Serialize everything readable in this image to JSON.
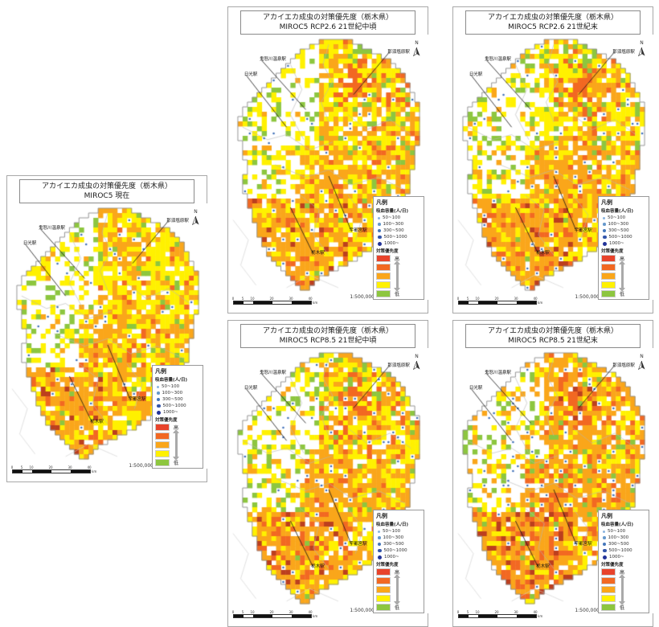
{
  "shared": {
    "title_line1": "アカイエカ成虫の対策優先度（栃木県）",
    "north_label": "N",
    "scale_ratio": "1:500,000",
    "scale_ticks": [
      "0",
      "5",
      "10",
      "20",
      "30",
      "40"
    ],
    "scale_unit": "km",
    "legend": {
      "header": "凡例",
      "capacity_title": "吸血容量(人/日)",
      "capacity_classes": [
        {
          "label": "50~100"
        },
        {
          "label": "100~300"
        },
        {
          "label": "300~500"
        },
        {
          "label": "500~1000"
        },
        {
          "label": "1000~"
        }
      ],
      "dot_colors": [
        "#8AB4E0",
        "#6699CC",
        "#4477BB",
        "#3355AA",
        "#223399"
      ],
      "dot_sizes": [
        3,
        3.5,
        4,
        4.5,
        5
      ],
      "priority_title": "対策優先度",
      "priority_high": "高",
      "priority_low": "低",
      "priority_colors": [
        "#E8432B",
        "#F26822",
        "#FAA61A",
        "#FFF100",
        "#8DC63F"
      ]
    }
  },
  "map": {
    "region_name": "栃木県",
    "colors": {
      "y": "#FFF100",
      "o": "#FAA61A",
      "d": "#F26822",
      "r": "#BC3F1E",
      "g": "#8DC63F",
      "b": "#3E6FB8"
    },
    "outline_color": "#8c8c8c",
    "boundary_color": "#b5b5b5",
    "grid": {
      "cols": 40,
      "rows": 52
    },
    "shape": [
      [
        18,
        24
      ],
      [
        16,
        26
      ],
      [
        14,
        28
      ],
      [
        13,
        30
      ],
      [
        12,
        32
      ],
      [
        11,
        33
      ],
      [
        10,
        34
      ],
      [
        9,
        35
      ],
      [
        8,
        35
      ],
      [
        7,
        36
      ],
      [
        6,
        36
      ],
      [
        5,
        37
      ],
      [
        4,
        37
      ],
      [
        3,
        38
      ],
      [
        2,
        38
      ],
      [
        2,
        38
      ],
      [
        1,
        38
      ],
      [
        1,
        38
      ],
      [
        1,
        38
      ],
      [
        1,
        38
      ],
      [
        1,
        38
      ],
      [
        2,
        38
      ],
      [
        2,
        37
      ],
      [
        2,
        37
      ],
      [
        2,
        37
      ],
      [
        3,
        37
      ],
      [
        3,
        37
      ],
      [
        3,
        36
      ],
      [
        2,
        36
      ],
      [
        2,
        36
      ],
      [
        2,
        36
      ],
      [
        2,
        36
      ],
      [
        3,
        35
      ],
      [
        3,
        35
      ],
      [
        3,
        35
      ],
      [
        4,
        34
      ],
      [
        4,
        34
      ],
      [
        4,
        33
      ],
      [
        5,
        33
      ],
      [
        5,
        32
      ],
      [
        5,
        31
      ],
      [
        6,
        30
      ],
      [
        6,
        29
      ],
      [
        7,
        28
      ],
      [
        7,
        26
      ],
      [
        8,
        25
      ],
      [
        9,
        23
      ],
      [
        10,
        21
      ],
      [
        11,
        19
      ],
      [
        12,
        17
      ],
      [
        13,
        16
      ],
      [
        14,
        15
      ]
    ],
    "stations": [
      {
        "name": "那須塩原駅",
        "lx": 0.8,
        "ly": 0.045,
        "ax": 0.63,
        "ay": 0.22
      },
      {
        "name": "鬼怒川温泉駅",
        "lx": 0.13,
        "ly": 0.075,
        "ax": 0.38,
        "ay": 0.28
      },
      {
        "name": "日光駅",
        "lx": 0.05,
        "ly": 0.135,
        "ax": 0.28,
        "ay": 0.35
      },
      {
        "name": "宇都宮駅",
        "lx": 0.6,
        "ly": 0.755,
        "ax": 0.5,
        "ay": 0.545
      },
      {
        "name": "栃木駅",
        "lx": 0.4,
        "ly": 0.845,
        "ax": 0.3,
        "ay": 0.67
      }
    ]
  },
  "panels": [
    {
      "id": "current",
      "title_line2": "MIROC5 現在",
      "seed": 11,
      "zone_weights": {
        "nw": {
          "n": 62,
          "y": 20,
          "g": 10,
          "o": 4,
          "b": 4
        },
        "ne": {
          "y": 48,
          "o": 22,
          "n": 16,
          "g": 6,
          "d": 4,
          "b": 4
        },
        "w": {
          "n": 55,
          "y": 28,
          "g": 9,
          "o": 5,
          "b": 3
        },
        "c": {
          "y": 38,
          "o": 34,
          "n": 14,
          "d": 6,
          "g": 4,
          "b": 4
        },
        "sw": {
          "o": 44,
          "y": 28,
          "d": 11,
          "n": 8,
          "r": 4,
          "g": 2,
          "b": 3
        },
        "se": {
          "y": 47,
          "o": 30,
          "n": 13,
          "d": 4,
          "g": 3,
          "b": 3
        }
      },
      "hotspots": [
        {
          "u": 0.62,
          "v": 0.17,
          "r": 0.1,
          "c": "o",
          "p": 0.8
        },
        {
          "u": 0.48,
          "v": 0.5,
          "r": 0.13,
          "c": "o",
          "p": 0.55
        },
        {
          "u": 0.33,
          "v": 0.78,
          "r": 0.14,
          "c": "o",
          "p": 0.6
        },
        {
          "u": 0.64,
          "v": 0.05,
          "r": 0.07,
          "c": "g",
          "p": 0.5
        }
      ]
    },
    {
      "id": "rcp26_mid",
      "title_line2": "MIROC5 RCP2.6 21世紀中頃",
      "seed": 22,
      "zone_weights": {
        "nw": {
          "n": 60,
          "y": 20,
          "g": 11,
          "o": 5,
          "b": 4
        },
        "ne": {
          "y": 40,
          "o": 28,
          "n": 14,
          "g": 6,
          "d": 8,
          "b": 4
        },
        "w": {
          "n": 54,
          "y": 26,
          "g": 9,
          "o": 8,
          "b": 3
        },
        "c": {
          "o": 42,
          "y": 28,
          "n": 12,
          "d": 10,
          "g": 4,
          "b": 4
        },
        "sw": {
          "o": 46,
          "y": 22,
          "d": 14,
          "n": 7,
          "r": 6,
          "g": 2,
          "b": 3
        },
        "se": {
          "y": 38,
          "o": 38,
          "n": 12,
          "d": 6,
          "g": 3,
          "b": 3
        }
      },
      "hotspots": [
        {
          "u": 0.62,
          "v": 0.17,
          "r": 0.1,
          "c": "d",
          "p": 0.7
        },
        {
          "u": 0.5,
          "v": 0.52,
          "r": 0.15,
          "c": "o",
          "p": 0.55
        },
        {
          "u": 0.33,
          "v": 0.78,
          "r": 0.15,
          "c": "o",
          "p": 0.6
        },
        {
          "u": 0.64,
          "v": 0.05,
          "r": 0.07,
          "c": "g",
          "p": 0.5
        }
      ]
    },
    {
      "id": "rcp26_end",
      "title_line2": "MIROC5 RCP2.6 21世紀末",
      "seed": 33,
      "zone_weights": {
        "nw": {
          "n": 60,
          "y": 20,
          "g": 11,
          "o": 5,
          "b": 4
        },
        "ne": {
          "y": 42,
          "o": 26,
          "n": 15,
          "g": 6,
          "d": 7,
          "b": 4
        },
        "w": {
          "n": 54,
          "y": 26,
          "g": 9,
          "o": 8,
          "b": 3
        },
        "c": {
          "o": 42,
          "y": 28,
          "n": 12,
          "d": 10,
          "g": 4,
          "b": 4
        },
        "sw": {
          "o": 46,
          "y": 22,
          "d": 14,
          "n": 7,
          "r": 6,
          "g": 2,
          "b": 3
        },
        "se": {
          "y": 38,
          "o": 38,
          "n": 12,
          "d": 6,
          "g": 3,
          "b": 3
        }
      },
      "hotspots": [
        {
          "u": 0.62,
          "v": 0.17,
          "r": 0.1,
          "c": "d",
          "p": 0.7
        },
        {
          "u": 0.5,
          "v": 0.52,
          "r": 0.15,
          "c": "o",
          "p": 0.55
        },
        {
          "u": 0.33,
          "v": 0.78,
          "r": 0.15,
          "c": "o",
          "p": 0.6
        },
        {
          "u": 0.64,
          "v": 0.05,
          "r": 0.07,
          "c": "g",
          "p": 0.5
        }
      ]
    },
    {
      "id": "rcp85_mid",
      "title_line2": "MIROC5 RCP8.5 21世紀中頃",
      "seed": 44,
      "zone_weights": {
        "nw": {
          "n": 58,
          "y": 20,
          "g": 11,
          "o": 7,
          "b": 4
        },
        "ne": {
          "y": 36,
          "o": 32,
          "n": 13,
          "g": 5,
          "d": 10,
          "b": 4
        },
        "w": {
          "n": 52,
          "y": 26,
          "g": 9,
          "o": 10,
          "b": 3
        },
        "c": {
          "o": 46,
          "y": 24,
          "n": 10,
          "d": 11,
          "g": 4,
          "b": 5
        },
        "sw": {
          "o": 48,
          "y": 18,
          "d": 16,
          "n": 6,
          "r": 7,
          "g": 2,
          "b": 3
        },
        "se": {
          "y": 34,
          "o": 40,
          "n": 11,
          "d": 8,
          "g": 3,
          "b": 4
        }
      },
      "hotspots": [
        {
          "u": 0.62,
          "v": 0.17,
          "r": 0.11,
          "c": "d",
          "p": 0.7
        },
        {
          "u": 0.5,
          "v": 0.53,
          "r": 0.16,
          "c": "o",
          "p": 0.6
        },
        {
          "u": 0.34,
          "v": 0.79,
          "r": 0.15,
          "c": "d",
          "p": 0.35
        },
        {
          "u": 0.64,
          "v": 0.05,
          "r": 0.07,
          "c": "g",
          "p": 0.5
        }
      ]
    },
    {
      "id": "rcp85_end",
      "title_line2": "MIROC5 RCP8.5 21世紀末",
      "seed": 55,
      "zone_weights": {
        "nw": {
          "n": 56,
          "y": 15,
          "g": 11,
          "o": 13,
          "b": 5
        },
        "ne": {
          "o": 46,
          "y": 22,
          "n": 12,
          "d": 11,
          "g": 4,
          "b": 5
        },
        "w": {
          "n": 50,
          "y": 20,
          "g": 8,
          "o": 18,
          "b": 4
        },
        "c": {
          "o": 50,
          "y": 16,
          "n": 8,
          "d": 15,
          "g": 5,
          "b": 6
        },
        "sw": {
          "o": 50,
          "y": 13,
          "d": 18,
          "n": 5,
          "r": 9,
          "g": 2,
          "b": 3
        },
        "se": {
          "o": 46,
          "y": 28,
          "n": 10,
          "d": 9,
          "g": 3,
          "b": 4
        }
      },
      "hotspots": [
        {
          "u": 0.62,
          "v": 0.18,
          "r": 0.12,
          "c": "r",
          "p": 0.4
        },
        {
          "u": 0.62,
          "v": 0.18,
          "r": 0.14,
          "c": "d",
          "p": 0.45
        },
        {
          "u": 0.52,
          "v": 0.55,
          "r": 0.16,
          "c": "d",
          "p": 0.3
        },
        {
          "u": 0.36,
          "v": 0.8,
          "r": 0.16,
          "c": "d",
          "p": 0.35
        },
        {
          "u": 0.64,
          "v": 0.05,
          "r": 0.06,
          "c": "g",
          "p": 0.45
        }
      ]
    }
  ]
}
